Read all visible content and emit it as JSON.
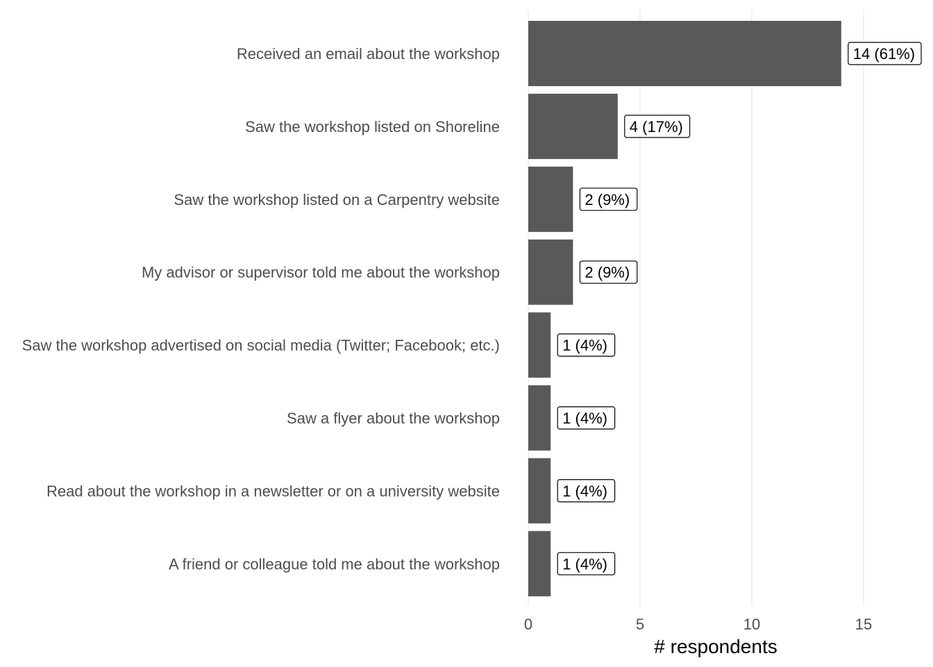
{
  "chart_data": {
    "type": "bar",
    "orientation": "horizontal",
    "categories": [
      "Received an email about the workshop",
      "Saw the workshop listed on Shoreline",
      "Saw the workshop listed on a Carpentry website",
      "My advisor or supervisor told me about the workshop",
      "Saw the workshop advertised on social media (Twitter; Facebook; etc.)",
      "Saw a flyer about the workshop",
      "Read about the workshop in a newsletter or on a university website",
      "A friend or colleague told me about the workshop"
    ],
    "values": [
      14,
      4,
      2,
      2,
      1,
      1,
      1,
      1
    ],
    "data_labels": [
      "14 (61%)",
      "4 (17%)",
      "2 (9%)",
      "2 (9%)",
      "1 (4%)",
      "1 (4%)",
      "1 (4%)",
      "1 (4%)"
    ],
    "xlabel": "# respondents",
    "ylabel": "",
    "title": "",
    "xlim": [
      0,
      17.5
    ],
    "xticks": [
      0,
      5,
      10,
      15
    ],
    "xtick_labels": [
      "0",
      "5",
      "10",
      "15"
    ],
    "grid": "vertical major",
    "legend": "none",
    "colors": {
      "bar": "#595959",
      "grid": "#ebebeb",
      "label_text": "#4d4d4d"
    }
  }
}
